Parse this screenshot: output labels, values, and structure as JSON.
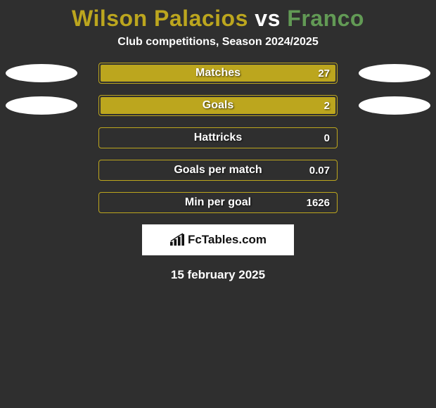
{
  "background_color": "#2f2f2f",
  "title": {
    "player1": "Wilson Palacios",
    "vs": "vs",
    "player2": "Franco",
    "player1_color": "#bca61e",
    "vs_color": "#ffffff",
    "player2_color": "#629a55"
  },
  "subtitle": "Club competitions, Season 2024/2025",
  "chart": {
    "track_border_color": "#bca61e",
    "fill_color": "#bca61e",
    "ellipse_left_color": "#ffffff",
    "ellipse_right_color": "#ffffff",
    "rows": [
      {
        "label": "Matches",
        "left_value": "",
        "right_value": "27",
        "left_pct": 0,
        "right_pct": 100,
        "show_left_ellipse": true,
        "show_right_ellipse": true
      },
      {
        "label": "Goals",
        "left_value": "",
        "right_value": "2",
        "left_pct": 0,
        "right_pct": 100,
        "show_left_ellipse": true,
        "show_right_ellipse": true
      },
      {
        "label": "Hattricks",
        "left_value": "",
        "right_value": "0",
        "left_pct": 0,
        "right_pct": 0,
        "show_left_ellipse": false,
        "show_right_ellipse": false
      },
      {
        "label": "Goals per match",
        "left_value": "",
        "right_value": "0.07",
        "left_pct": 0,
        "right_pct": 0,
        "show_left_ellipse": false,
        "show_right_ellipse": false
      },
      {
        "label": "Min per goal",
        "left_value": "",
        "right_value": "1626",
        "left_pct": 0,
        "right_pct": 0,
        "show_left_ellipse": false,
        "show_right_ellipse": false
      }
    ]
  },
  "brand": {
    "text": "FcTables.com",
    "icon_name": "bar-chart-icon",
    "box_bg": "#ffffff",
    "text_color": "#111111"
  },
  "date_text": "15 february 2025"
}
